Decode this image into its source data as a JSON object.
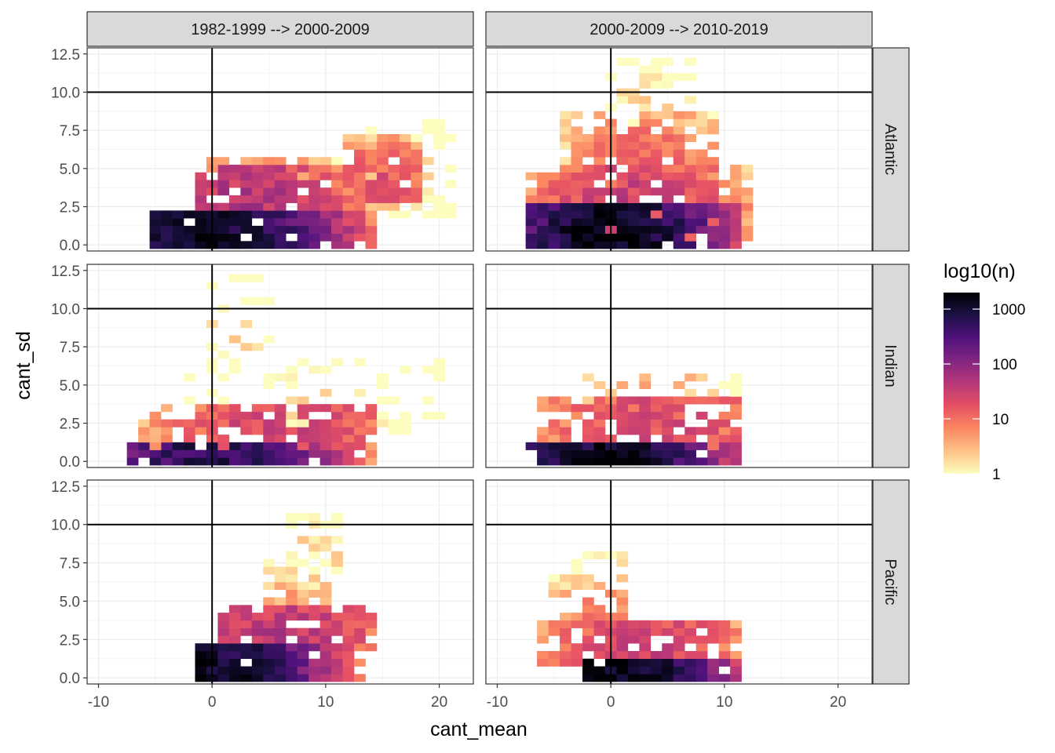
{
  "chart_data": {
    "type": "heatmap",
    "xlabel": "cant_mean",
    "ylabel": "cant_sd",
    "xlim": [
      -11,
      23
    ],
    "ylim": [
      -0.4,
      12.9
    ],
    "x_ticks": [
      -10,
      0,
      10,
      20
    ],
    "x_tick_labels": [
      "-10",
      "0",
      "10",
      "20"
    ],
    "y_ticks": [
      0,
      2.5,
      5,
      7.5,
      10,
      12.5
    ],
    "y_tick_labels": [
      "0.0",
      "2.5",
      "5.0",
      "7.5",
      "10.0",
      "12.5"
    ],
    "reference_lines": {
      "vline_x": 0,
      "hline_y": 10
    },
    "bin_size": {
      "x": 1,
      "y": 0.5
    },
    "col_facets": [
      "1982-1999 --> 2000-2009",
      "2000-2009 --> 2010-2019"
    ],
    "row_facets": [
      "Atlantic",
      "Indian",
      "Pacific"
    ],
    "legend": {
      "title": "log10(n)",
      "scale": "log10",
      "breaks": [
        1,
        10,
        100,
        1000
      ],
      "labels": [
        "1",
        "10",
        "100",
        "1000"
      ],
      "max": 2000,
      "colors": [
        "#fcfdbf",
        "#fec287",
        "#fb8861",
        "#e65164",
        "#b73779",
        "#822681",
        "#51127c",
        "#1d1147",
        "#000004"
      ]
    },
    "panels": [
      {
        "col": 0,
        "row": 0,
        "clusters": [
          {
            "x": [
              -5,
              14
            ],
            "y": [
              0,
              2
            ],
            "peak": [
              0,
              0
            ],
            "peak_n": 1500,
            "sigma": 4.5,
            "fill": 0.95
          },
          {
            "x": [
              -1,
              16
            ],
            "y": [
              2,
              5
            ],
            "peak": [
              3,
              2
            ],
            "peak_n": 60,
            "sigma": 5,
            "fill": 0.85
          },
          {
            "x": [
              12,
              18
            ],
            "y": [
              3,
              7
            ],
            "peak": [
              15,
              4
            ],
            "peak_n": 20,
            "sigma": 3,
            "fill": 0.85
          },
          {
            "x": [
              14,
              21
            ],
            "y": [
              2,
              8
            ],
            "peak": [
              16,
              5
            ],
            "peak_n": 3,
            "sigma": 3,
            "fill": 0.45
          },
          {
            "x": [
              0,
              11
            ],
            "y": [
              4.5,
              5.5
            ],
            "peak": [
              4,
              5
            ],
            "peak_n": 6,
            "sigma": 4,
            "fill": 0.7
          }
        ]
      },
      {
        "col": 1,
        "row": 0,
        "clusters": [
          {
            "x": [
              -7,
              11
            ],
            "y": [
              0,
              2.5
            ],
            "peak": [
              0,
              0
            ],
            "peak_n": 2000,
            "sigma": 4,
            "fill": 0.95
          },
          {
            "x": [
              -7,
              12
            ],
            "y": [
              0.5,
              5
            ],
            "peak": [
              2,
              2
            ],
            "peak_n": 40,
            "sigma": 5,
            "fill": 0.85
          },
          {
            "x": [
              -4,
              9
            ],
            "y": [
              4,
              8.5
            ],
            "peak": [
              3,
              5
            ],
            "peak_n": 15,
            "sigma": 4,
            "fill": 0.75
          },
          {
            "x": [
              0,
              7
            ],
            "y": [
              8,
              12
            ],
            "peak": [
              3,
              9
            ],
            "peak_n": 2,
            "sigma": 3,
            "fill": 0.45
          }
        ]
      },
      {
        "col": 0,
        "row": 1,
        "clusters": [
          {
            "x": [
              -7,
              14
            ],
            "y": [
              0,
              1
            ],
            "peak": [
              0,
              0
            ],
            "peak_n": 800,
            "sigma": 4.5,
            "fill": 0.9
          },
          {
            "x": [
              -6,
              14
            ],
            "y": [
              1,
              3.5
            ],
            "peak": [
              6,
              1.5
            ],
            "peak_n": 30,
            "sigma": 6,
            "fill": 0.75
          },
          {
            "x": [
              -2,
              20
            ],
            "y": [
              2,
              6.5
            ],
            "peak": [
              10,
              3
            ],
            "peak_n": 2,
            "sigma": 4,
            "fill": 0.25
          },
          {
            "x": [
              0,
              5
            ],
            "y": [
              6.5,
              12
            ],
            "peak": [
              1,
              7.5
            ],
            "peak_n": 2,
            "sigma": 3,
            "fill": 0.25
          }
        ]
      },
      {
        "col": 1,
        "row": 1,
        "clusters": [
          {
            "x": [
              -7,
              11
            ],
            "y": [
              0,
              1
            ],
            "peak": [
              0,
              0
            ],
            "peak_n": 1500,
            "sigma": 4,
            "fill": 0.9
          },
          {
            "x": [
              -6,
              11
            ],
            "y": [
              1,
              4
            ],
            "peak": [
              4,
              1.5
            ],
            "peak_n": 25,
            "sigma": 6,
            "fill": 0.85
          },
          {
            "x": [
              -3,
              11
            ],
            "y": [
              4,
              5.5
            ],
            "peak": [
              4,
              4
            ],
            "peak_n": 4,
            "sigma": 4,
            "fill": 0.5
          }
        ]
      },
      {
        "col": 0,
        "row": 2,
        "clusters": [
          {
            "x": [
              -1,
              13
            ],
            "y": [
              0,
              2
            ],
            "peak": [
              0,
              0
            ],
            "peak_n": 1500,
            "sigma": 4,
            "fill": 0.95
          },
          {
            "x": [
              1,
              14
            ],
            "y": [
              2,
              4.5
            ],
            "peak": [
              6,
              2
            ],
            "peak_n": 50,
            "sigma": 5,
            "fill": 0.9
          },
          {
            "x": [
              5,
              11
            ],
            "y": [
              4,
              7.5
            ],
            "peak": [
              7,
              4
            ],
            "peak_n": 6,
            "sigma": 3,
            "fill": 0.6
          },
          {
            "x": [
              7,
              11
            ],
            "y": [
              7,
              10.5
            ],
            "peak": [
              9,
              8
            ],
            "peak_n": 2,
            "sigma": 3,
            "fill": 0.45
          }
        ]
      },
      {
        "col": 1,
        "row": 2,
        "clusters": [
          {
            "x": [
              -2,
              11
            ],
            "y": [
              0,
              1
            ],
            "peak": [
              0,
              0
            ],
            "peak_n": 2000,
            "sigma": 4,
            "fill": 0.95
          },
          {
            "x": [
              -6,
              11
            ],
            "y": [
              1,
              3.5
            ],
            "peak": [
              3,
              1.5
            ],
            "peak_n": 30,
            "sigma": 5,
            "fill": 0.85
          },
          {
            "x": [
              -5,
              1
            ],
            "y": [
              3.5,
              6.5
            ],
            "peak": [
              -1,
              4
            ],
            "peak_n": 8,
            "sigma": 3,
            "fill": 0.6
          },
          {
            "x": [
              -3,
              1
            ],
            "y": [
              6.5,
              8
            ],
            "peak": [
              0,
              7
            ],
            "peak_n": 2,
            "sigma": 2,
            "fill": 0.4
          }
        ]
      }
    ]
  }
}
